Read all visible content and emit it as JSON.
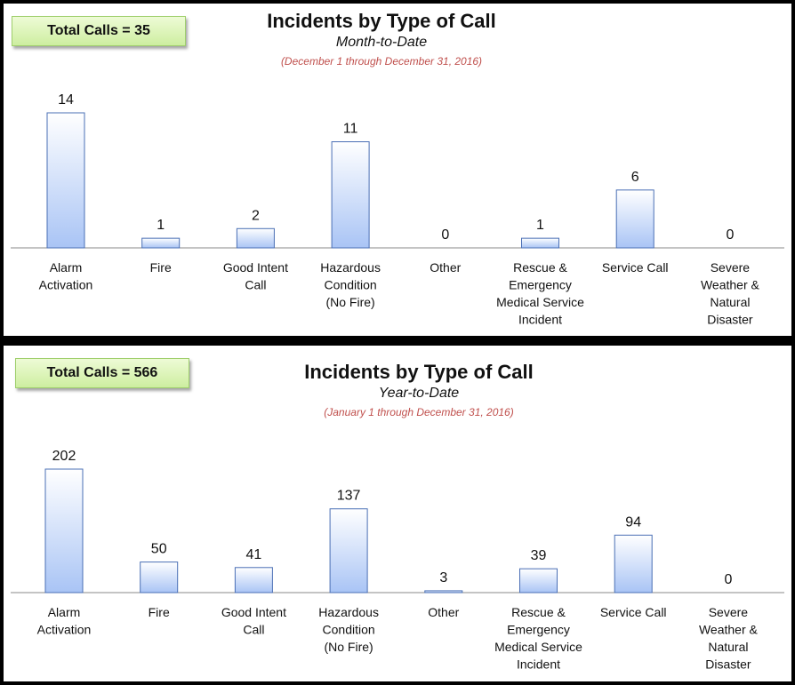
{
  "chart_data": [
    {
      "type": "bar",
      "title": "Incidents by Type of Call",
      "subtitle": "Month-to-Date",
      "date_range": "(December 1 through December 31, 2016)",
      "total_label": "Total Calls = 35",
      "categories": [
        [
          "Alarm",
          "Activation"
        ],
        [
          "Fire"
        ],
        [
          "Good Intent",
          "Call"
        ],
        [
          "Hazardous",
          "Condition",
          "(No Fire)"
        ],
        [
          "Other"
        ],
        [
          "Rescue &",
          "Emergency",
          "Medical Service",
          "Incident"
        ],
        [
          "Service Call"
        ],
        [
          "Severe",
          "Weather &",
          "Natural",
          "Disaster"
        ]
      ],
      "values": [
        14,
        1,
        2,
        11,
        0,
        1,
        6,
        0
      ],
      "ylim": [
        0,
        14
      ],
      "grid": false,
      "colors": {
        "bar_top": "#ffffff",
        "bar_bottom": "#a9c4f5",
        "bar_border": "#4a6fb5"
      }
    },
    {
      "type": "bar",
      "title": "Incidents by Type of Call",
      "subtitle": "Year-to-Date",
      "date_range": "(January 1 through December 31, 2016)",
      "total_label": "Total Calls = 566",
      "categories": [
        [
          "Alarm",
          "Activation"
        ],
        [
          "Fire"
        ],
        [
          "Good Intent",
          "Call"
        ],
        [
          "Hazardous",
          "Condition",
          "(No Fire)"
        ],
        [
          "Other"
        ],
        [
          "Rescue &",
          "Emergency",
          "Medical Service",
          "Incident"
        ],
        [
          "Service Call"
        ],
        [
          "Severe",
          "Weather &",
          "Natural",
          "Disaster"
        ]
      ],
      "values": [
        202,
        50,
        41,
        137,
        3,
        39,
        94,
        0
      ],
      "ylim": [
        0,
        202
      ],
      "grid": false,
      "colors": {
        "bar_top": "#ffffff",
        "bar_bottom": "#a9c4f5",
        "bar_border": "#4a6fb5"
      }
    }
  ]
}
